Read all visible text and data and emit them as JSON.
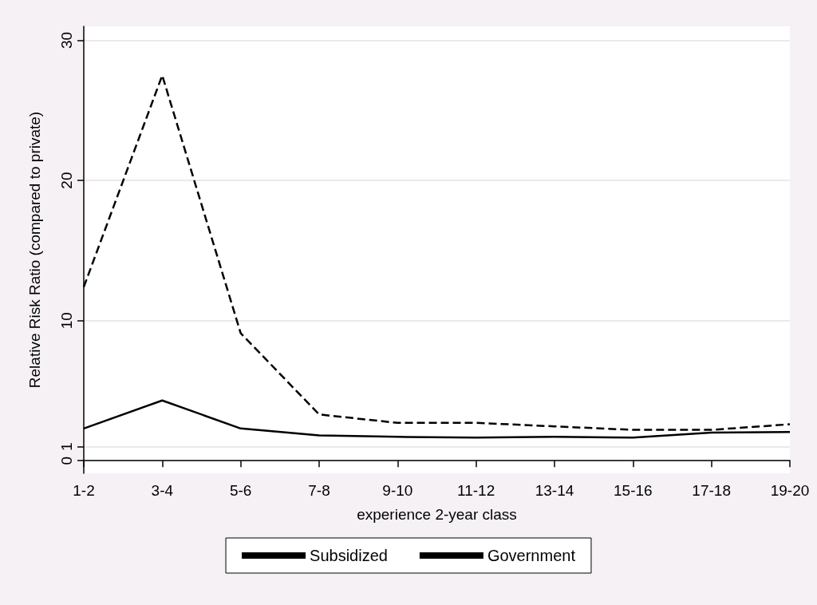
{
  "chart_data": {
    "type": "line",
    "xlabel": "experience 2-year class",
    "ylabel": "Relative Risk Ratio (compared to private)",
    "categories": [
      "1-2",
      "3-4",
      "5-6",
      "7-8",
      "9-10",
      "11-12",
      "13-14",
      "15-16",
      "17-18",
      "19-20"
    ],
    "series": [
      {
        "name": "Subsidized",
        "color": "#000000",
        "line_style": "solid",
        "values": [
          2.3,
          4.3,
          2.3,
          1.8,
          1.7,
          1.65,
          1.7,
          1.65,
          2.0,
          2.05
        ]
      },
      {
        "name": "Government",
        "color": "#000000",
        "line_style": "dashed",
        "values": [
          12.4,
          27.5,
          9.1,
          3.3,
          2.7,
          2.7,
          2.45,
          2.2,
          2.2,
          2.6
        ]
      }
    ],
    "ylim": [
      -0.9,
      31
    ],
    "yticks": [
      0,
      1,
      10,
      20,
      30
    ],
    "grid": "y",
    "legend": "bottom",
    "marker": "none"
  }
}
